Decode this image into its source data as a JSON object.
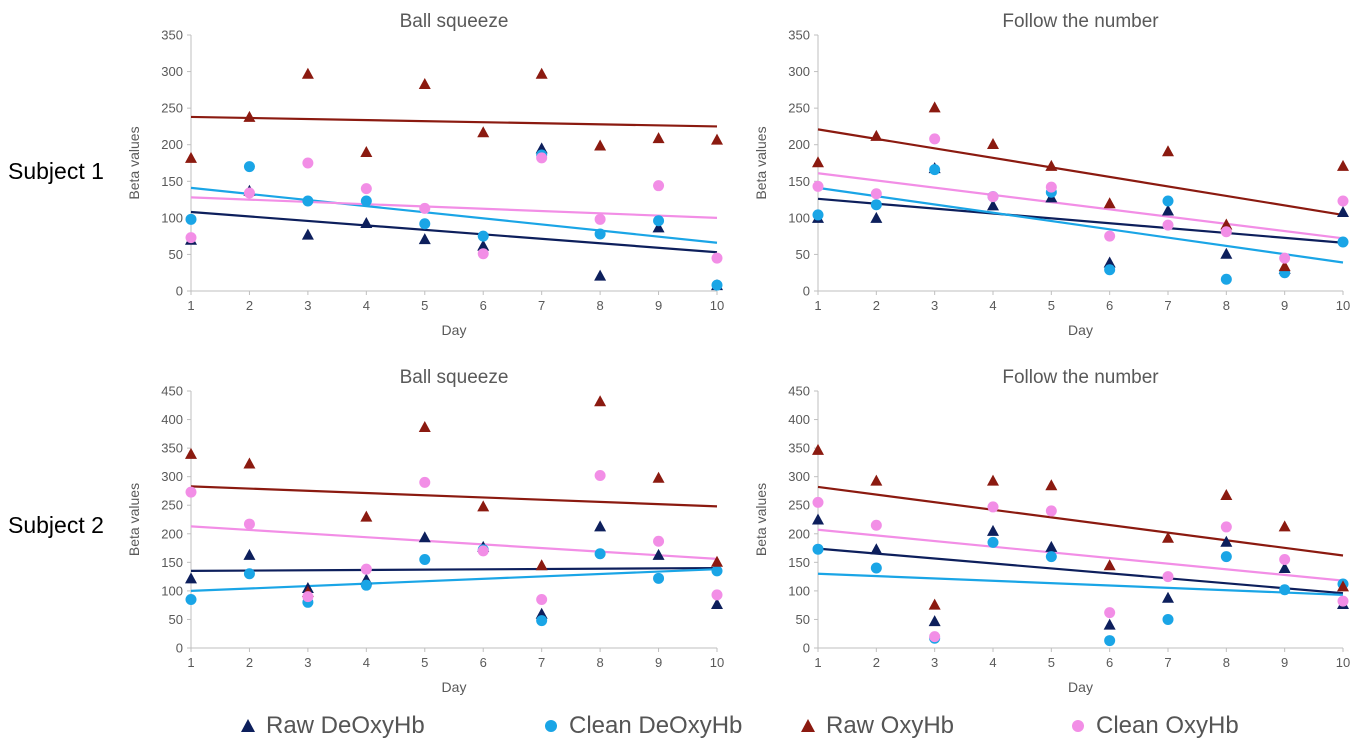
{
  "row_labels": [
    "Subject 1",
    "Subject 2"
  ],
  "legend": [
    {
      "label": "Raw DeOxyHb",
      "color": "#0d1f5c",
      "marker": "triangle"
    },
    {
      "label": "Clean DeOxyHb",
      "color": "#1aa5e6",
      "marker": "circle"
    },
    {
      "label": "Raw OxyHb",
      "color": "#8b1a10",
      "marker": "triangle"
    },
    {
      "label": "Clean OxyHb",
      "color": "#f28ee6",
      "marker": "circle"
    }
  ],
  "chart_data": [
    {
      "type": "scatter",
      "title": "Ball squeeze",
      "xlabel": "Day",
      "ylabel": "Beta values",
      "xlim": [
        1,
        10
      ],
      "ylim": [
        0,
        350
      ],
      "ytick_step": 50,
      "trendlines": true,
      "x": [
        1,
        2,
        3,
        4,
        5,
        6,
        7,
        8,
        9,
        10
      ],
      "series": [
        {
          "name": "Raw DeOxyHb",
          "values": [
            70,
            137,
            77,
            93,
            71,
            62,
            195,
            21,
            87,
            8
          ],
          "trend": [
            108,
            53
          ]
        },
        {
          "name": "Clean DeOxyHb",
          "values": [
            98,
            170,
            123,
            123,
            92,
            75,
            186,
            78,
            96,
            8
          ],
          "trend": [
            141,
            66
          ]
        },
        {
          "name": "Raw OxyHb",
          "values": [
            182,
            238,
            297,
            190,
            283,
            217,
            297,
            199,
            209,
            207
          ],
          "trend": [
            238,
            225
          ]
        },
        {
          "name": "Clean OxyHb",
          "values": [
            73,
            134,
            175,
            140,
            113,
            51,
            182,
            98,
            144,
            45
          ],
          "trend": [
            128,
            100
          ]
        }
      ]
    },
    {
      "type": "scatter",
      "title": "Follow the number",
      "xlabel": "Day",
      "ylabel": "Beta values",
      "xlim": [
        1,
        10
      ],
      "ylim": [
        0,
        350
      ],
      "ytick_step": 50,
      "trendlines": true,
      "x": [
        1,
        2,
        3,
        4,
        5,
        6,
        7,
        8,
        9,
        10
      ],
      "series": [
        {
          "name": "Raw DeOxyHb",
          "values": [
            100,
            100,
            168,
            117,
            128,
            39,
            110,
            51,
            30,
            108
          ],
          "trend": [
            126,
            66
          ]
        },
        {
          "name": "Clean DeOxyHb",
          "values": [
            104,
            118,
            166,
            129,
            135,
            29,
            123,
            16,
            25,
            67
          ],
          "trend": [
            141,
            39
          ]
        },
        {
          "name": "Raw OxyHb",
          "values": [
            176,
            212,
            251,
            201,
            171,
            120,
            191,
            91,
            34,
            171
          ],
          "trend": [
            221,
            104
          ]
        },
        {
          "name": "Clean OxyHb",
          "values": [
            143,
            133,
            208,
            129,
            142,
            75,
            90,
            81,
            45,
            123
          ],
          "trend": [
            161,
            72
          ]
        }
      ]
    },
    {
      "type": "scatter",
      "title": "Ball squeeze",
      "xlabel": "Day",
      "ylabel": "Beta values",
      "xlim": [
        1,
        10
      ],
      "ylim": [
        0,
        450
      ],
      "ytick_step": 50,
      "trendlines": true,
      "x": [
        1,
        2,
        3,
        4,
        5,
        6,
        7,
        8,
        9,
        10
      ],
      "series": [
        {
          "name": "Raw DeOxyHb",
          "values": [
            122,
            163,
            105,
            120,
            194,
            177,
            60,
            213,
            163,
            77
          ],
          "trend": [
            135,
            140
          ]
        },
        {
          "name": "Clean DeOxyHb",
          "values": [
            85,
            130,
            80,
            110,
            155,
            172,
            48,
            165,
            122,
            135
          ],
          "trend": [
            100,
            138
          ]
        },
        {
          "name": "Raw OxyHb",
          "values": [
            340,
            323,
            98,
            230,
            387,
            248,
            145,
            432,
            298,
            151
          ],
          "trend": [
            283,
            248
          ]
        },
        {
          "name": "Clean OxyHb",
          "values": [
            273,
            217,
            90,
            138,
            290,
            170,
            85,
            302,
            187,
            93
          ],
          "trend": [
            213,
            156
          ]
        }
      ]
    },
    {
      "type": "scatter",
      "title": "Follow the number",
      "xlabel": "Day",
      "ylabel": "Beta values",
      "xlim": [
        1,
        10
      ],
      "ylim": [
        0,
        450
      ],
      "ytick_step": 50,
      "trendlines": true,
      "x": [
        1,
        2,
        3,
        4,
        5,
        6,
        7,
        8,
        9,
        10
      ],
      "series": [
        {
          "name": "Raw DeOxyHb",
          "values": [
            225,
            173,
            47,
            205,
            177,
            41,
            88,
            186,
            140,
            77
          ],
          "trend": [
            174,
            96
          ]
        },
        {
          "name": "Clean DeOxyHb",
          "values": [
            173,
            140,
            17,
            185,
            160,
            13,
            50,
            160,
            102,
            112
          ],
          "trend": [
            130,
            93
          ]
        },
        {
          "name": "Raw OxyHb",
          "values": [
            347,
            293,
            76,
            293,
            285,
            145,
            193,
            268,
            213,
            108
          ],
          "trend": [
            282,
            162
          ]
        },
        {
          "name": "Clean OxyHb",
          "values": [
            255,
            215,
            20,
            247,
            240,
            62,
            125,
            212,
            155,
            82
          ],
          "trend": [
            207,
            118
          ]
        }
      ]
    }
  ]
}
